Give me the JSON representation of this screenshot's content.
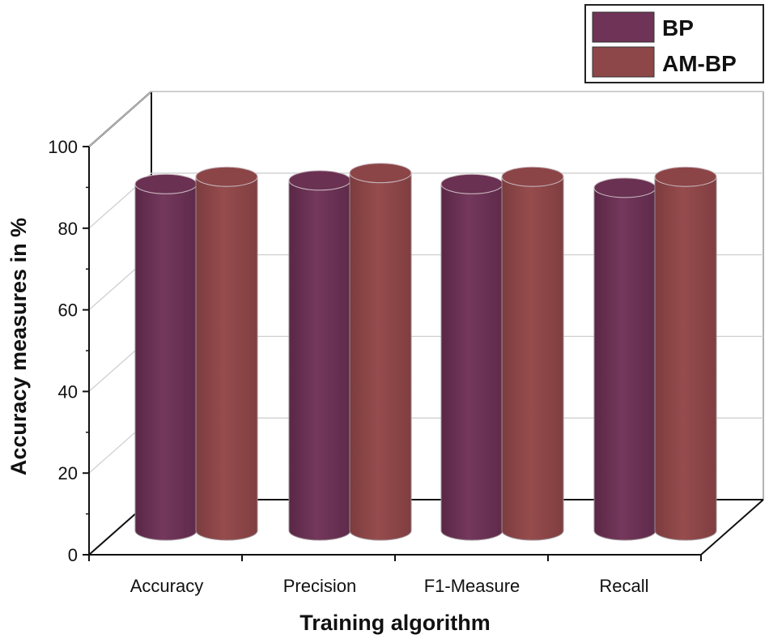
{
  "chart_data": {
    "type": "bar",
    "title": "",
    "xlabel": "Training algorithm",
    "ylabel": "Accuracy measures in %",
    "ylim": [
      0,
      100
    ],
    "yticks": [
      0,
      20,
      40,
      60,
      80,
      100
    ],
    "categories": [
      "Accuracy",
      "Precision",
      "F1-Measure",
      "Recall"
    ],
    "series": [
      {
        "name": "BP",
        "values": [
          94,
          95,
          94,
          93
        ],
        "color": "#6e3356"
      },
      {
        "name": "AM-BP",
        "values": [
          96,
          97,
          96,
          96
        ],
        "color": "#8e4748"
      }
    ],
    "legend_position": "top-right",
    "grid": true,
    "style": "3d-cylinder"
  }
}
